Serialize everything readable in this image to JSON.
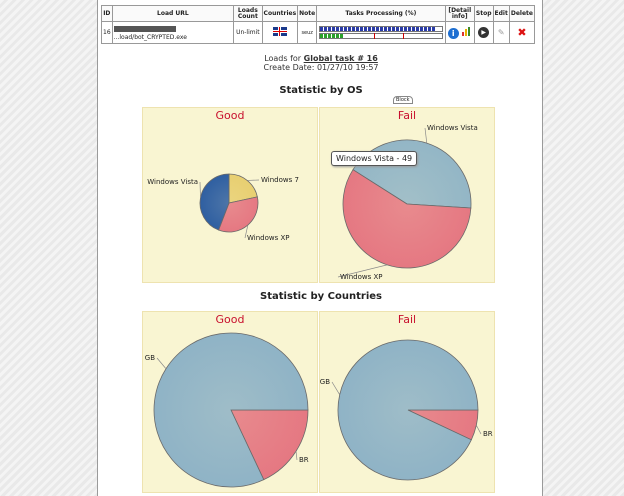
{
  "table": {
    "headers": {
      "id": "ID",
      "url": "Load URL",
      "loads_count": "Loads Count",
      "countries": "Countries",
      "note": "Note",
      "tasks": "Tasks Processing (%)",
      "detail": "[Detail info]",
      "stop": "Stop",
      "edit": "Edit",
      "delete": "Delete"
    },
    "row": {
      "id": "16",
      "url": "...load/bot_CRYPTED.exe",
      "loads_count": "Un-limit",
      "note": "seuz"
    }
  },
  "info": {
    "loads_for_prefix": "Loads for",
    "task_link": "Global task # 16",
    "create_date": "Create Date: 01/27/10 19:57"
  },
  "os_section": {
    "title": "Statistic by OS",
    "block_tab": "Block",
    "tooltip": "Windows Vista - 49",
    "good": {
      "title": "Good",
      "slices": [
        {
          "label": "Windows 7",
          "value": 24,
          "color": "#e8cf71"
        },
        {
          "label": "Windows XP",
          "value": 38,
          "color": "#e57882"
        },
        {
          "label": "Windows Vista",
          "value": 49,
          "color": "#2f5fa1"
        }
      ]
    },
    "fail": {
      "title": "Fail",
      "slices": [
        {
          "label": "Windows Vista",
          "value": 42,
          "color": "#93b6c6"
        },
        {
          "label": "Windows XP",
          "value": 58,
          "color": "#e57882"
        }
      ]
    }
  },
  "country_section": {
    "title": "Statistic by Countries",
    "good": {
      "title": "Good",
      "slices": [
        {
          "label": "BR",
          "value": 18,
          "color": "#e57882"
        },
        {
          "label": "GB",
          "value": 82,
          "color": "#8fb3c6"
        }
      ]
    },
    "fail": {
      "title": "Fail",
      "slices": [
        {
          "label": "BR",
          "value": 7,
          "color": "#e57882"
        },
        {
          "label": "GB",
          "value": 93,
          "color": "#8fb3c6"
        }
      ]
    }
  },
  "chart_data": [
    {
      "type": "pie",
      "title": "Good",
      "categories": [
        "Windows 7",
        "Windows XP",
        "Windows Vista"
      ],
      "values": [
        24,
        38,
        49
      ]
    },
    {
      "type": "pie",
      "title": "Fail",
      "categories": [
        "Windows Vista",
        "Windows XP"
      ],
      "values": [
        42,
        58
      ]
    },
    {
      "type": "pie",
      "title": "Good",
      "categories": [
        "BR",
        "GB"
      ],
      "values": [
        18,
        82
      ]
    },
    {
      "type": "pie",
      "title": "Fail",
      "categories": [
        "BR",
        "GB"
      ],
      "values": [
        7,
        93
      ]
    }
  ],
  "progress": {
    "tasks_blue": 0.95,
    "tasks_green": 0.2
  }
}
